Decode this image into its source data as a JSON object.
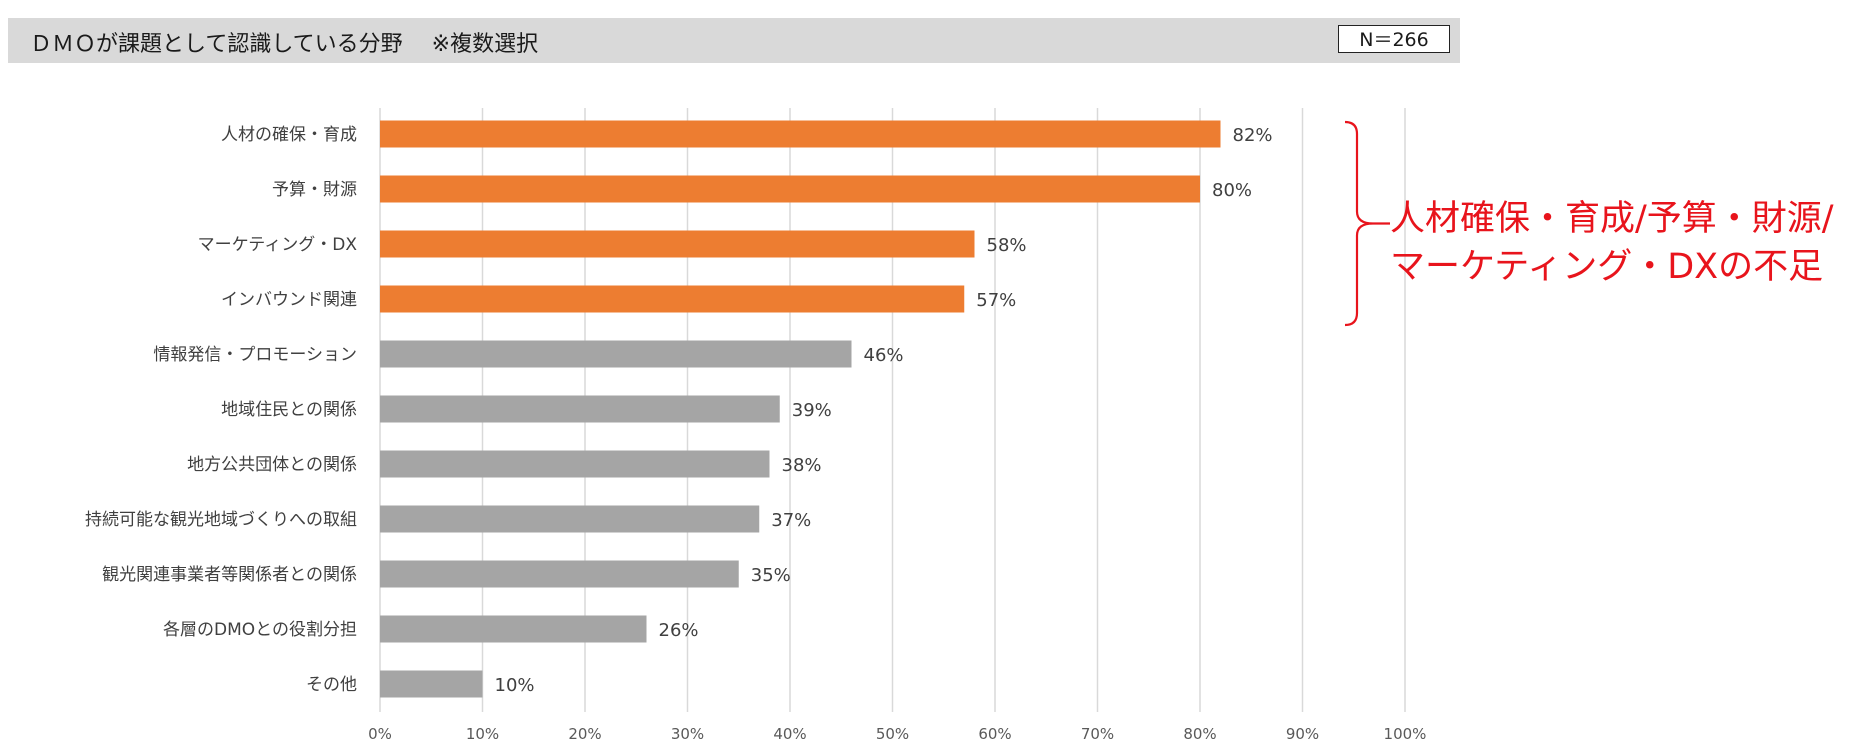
{
  "header": {
    "title": "ＤＭＯが課題として認識している分野　 ※複数選択",
    "sample_size": "N＝266"
  },
  "annotation": {
    "lines": [
      "人材確保・育成/予算・財源/",
      "マーケティング・DXの不足"
    ],
    "color": "#e8141c"
  },
  "chart_data": {
    "type": "bar",
    "orientation": "horizontal",
    "categories": [
      "人材の確保・育成",
      "予算・財源",
      "マーケティング・DX",
      "インバウンド関連",
      "情報発信・プロモーション",
      "地域住民との関係",
      "地方公共団体との関係",
      "持続可能な観光地域づくりへの取組",
      "観光関連事業者等関係者との関係",
      "各層のDMOとの役割分担",
      "その他"
    ],
    "values": [
      82,
      80,
      58,
      57,
      46,
      39,
      38,
      37,
      35,
      26,
      10
    ],
    "data_labels": [
      "82%",
      "80%",
      "58%",
      "57%",
      "46%",
      "39%",
      "38%",
      "37%",
      "35%",
      "26%",
      "10%"
    ],
    "highlighted": [
      true,
      true,
      true,
      true,
      false,
      false,
      false,
      false,
      false,
      false,
      false
    ],
    "colors": {
      "highlight": "#ed7d31",
      "default": "#a5a5a5",
      "grid": "#d9d9d9"
    },
    "xlim": [
      0,
      100
    ],
    "xticks": [
      "0%",
      "10%",
      "20%",
      "30%",
      "40%",
      "50%",
      "60%",
      "70%",
      "80%",
      "90%",
      "100%"
    ],
    "xlabel": "",
    "ylabel": "",
    "grid": true
  }
}
